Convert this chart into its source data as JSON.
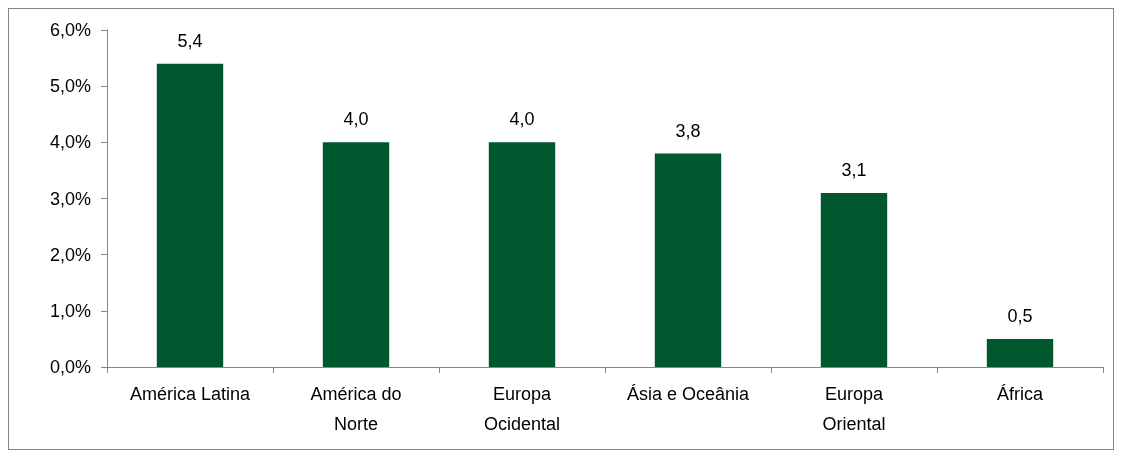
{
  "chart_data": {
    "type": "bar",
    "categories": [
      "América Latina",
      "América do\nNorte",
      "Europa\nOcidental",
      "Ásia e Oceânia",
      "Europa\nOriental",
      "África"
    ],
    "values": [
      5.4,
      4.0,
      4.0,
      3.8,
      3.1,
      0.5
    ],
    "value_labels": [
      "5,4",
      "4,0",
      "4,0",
      "3,8",
      "3,1",
      "0,5"
    ],
    "color": "#00582f",
    "ylim": [
      0,
      6
    ],
    "yticks": [
      {
        "value": 0,
        "label": "0,0%"
      },
      {
        "value": 1,
        "label": "1,0%"
      },
      {
        "value": 2,
        "label": "2,0%"
      },
      {
        "value": 3,
        "label": "3,0%"
      },
      {
        "value": 4,
        "label": "4,0%"
      },
      {
        "value": 5,
        "label": "5,0%"
      },
      {
        "value": 6,
        "label": "6,0%"
      }
    ],
    "grid": false
  }
}
